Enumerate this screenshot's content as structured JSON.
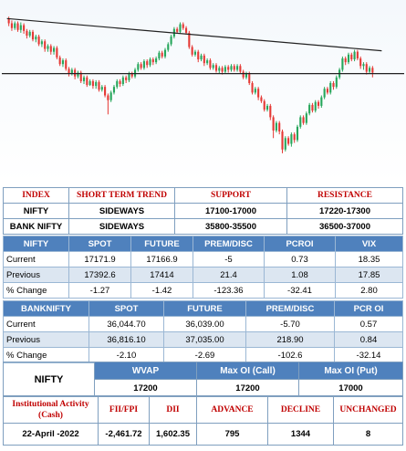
{
  "chart": {
    "candles": [
      [
        8.0,
        3.0,
        0.0,
        10.0
      ],
      [
        3.0,
        -2.0,
        -5.0,
        6.0
      ],
      [
        -2.0,
        3.0,
        -4.0,
        5.0
      ],
      [
        3.0,
        -4.0,
        -6.0,
        5.0
      ],
      [
        -4.0,
        1.0,
        -7.0,
        4.0
      ],
      [
        1.0,
        -5.0,
        -8.0,
        3.0
      ],
      [
        -5.0,
        -10.0,
        -13.0,
        -3.0
      ],
      [
        -10.0,
        -6.0,
        -12.0,
        -4.0
      ],
      [
        -6.0,
        -14.0,
        -16.0,
        -4.0
      ],
      [
        -14.0,
        -11.0,
        -17.0,
        -9.0
      ],
      [
        -11.0,
        -19.0,
        -21.0,
        -9.0
      ],
      [
        -19.0,
        -16.0,
        -22.0,
        -14.0
      ],
      [
        -16.0,
        -24.0,
        -27.0,
        -14.0
      ],
      [
        -24.0,
        -21.0,
        -27.0,
        -19.0
      ],
      [
        -21.0,
        -27.0,
        -30.0,
        -19.0
      ],
      [
        -27.0,
        -23.0,
        -30.0,
        -21.0
      ],
      [
        -23.0,
        -33.0,
        -35.0,
        -21.0
      ],
      [
        -33.0,
        -40.0,
        -42.0,
        -31.0
      ],
      [
        -40.0,
        -36.0,
        -43.0,
        -34.0
      ],
      [
        -36.0,
        -45.0,
        -47.0,
        -34.0
      ],
      [
        -45.0,
        -50.0,
        -53.0,
        -43.0
      ],
      [
        -50.0,
        -46.0,
        -52.0,
        -44.0
      ],
      [
        -46.0,
        -53.0,
        -56.0,
        -44.0
      ],
      [
        -53.0,
        -49.0,
        -55.0,
        -47.0
      ],
      [
        -49.0,
        -58.0,
        -60.0,
        -47.0
      ],
      [
        -58.0,
        -54.0,
        -61.0,
        -52.0
      ],
      [
        -54.0,
        -62.0,
        -64.0,
        -52.0
      ],
      [
        -62.0,
        -58.0,
        -63.0,
        -56.0
      ],
      [
        -58.0,
        -63.0,
        -66.0,
        -56.0
      ],
      [
        -63.0,
        -59.0,
        -66.0,
        -57.0
      ],
      [
        -59.0,
        -67.0,
        -69.0,
        -57.0
      ],
      [
        -67.0,
        -64.0,
        -69.0,
        -62.0
      ],
      [
        -64.0,
        -73.0,
        -75.0,
        -62.0
      ],
      [
        -73.0,
        -78.0,
        -93.0,
        -71.0
      ],
      [
        -78.0,
        -70.0,
        -80.0,
        -68.0
      ],
      [
        -70.0,
        -64.0,
        -72.0,
        -62.0
      ],
      [
        -64.0,
        -58.0,
        -66.0,
        -56.0
      ],
      [
        -58.0,
        -61.0,
        -64.0,
        -56.0
      ],
      [
        -61.0,
        -54.0,
        -63.0,
        -52.0
      ],
      [
        -54.0,
        -57.0,
        -60.0,
        -52.0
      ],
      [
        -57.0,
        -50.0,
        -59.0,
        -48.0
      ],
      [
        -50.0,
        -53.0,
        -55.0,
        -48.0
      ],
      [
        -53.0,
        -46.0,
        -55.0,
        -44.0
      ],
      [
        -46.0,
        -40.0,
        -48.0,
        -38.0
      ],
      [
        -40.0,
        -44.0,
        -46.0,
        -38.0
      ],
      [
        -44.0,
        -37.0,
        -46.0,
        -35.0
      ],
      [
        -37.0,
        -41.0,
        -44.0,
        -35.0
      ],
      [
        -41.0,
        -35.0,
        -43.0,
        -33.0
      ],
      [
        -35.0,
        -38.0,
        -41.0,
        -33.0
      ],
      [
        -38.0,
        -34.0,
        -40.0,
        -32.0
      ],
      [
        -34.0,
        -28.0,
        -36.0,
        -26.0
      ],
      [
        -28.0,
        -32.0,
        -34.0,
        -26.0
      ],
      [
        -32.0,
        -25.0,
        -34.0,
        -23.0
      ],
      [
        -25.0,
        -19.0,
        -27.0,
        -17.0
      ],
      [
        -19.0,
        -11.0,
        -21.0,
        -9.0
      ],
      [
        -11.0,
        -3.0,
        -13.0,
        -1.0
      ],
      [
        -3.0,
        -6.0,
        -8.0,
        -1.0
      ],
      [
        -6.0,
        2.0,
        -8.0,
        4.0
      ],
      [
        2.0,
        -2.0,
        -4.0,
        4.0
      ],
      [
        -2.0,
        -7.0,
        -9.0,
        0.0
      ],
      [
        -7.0,
        -22.0,
        -24.0,
        -5.0
      ],
      [
        -22.0,
        -30.0,
        -32.0,
        -20.0
      ],
      [
        -30.0,
        -27.0,
        -32.0,
        -25.0
      ],
      [
        -27.0,
        -35.0,
        -38.0,
        -25.0
      ],
      [
        -35.0,
        -31.0,
        -37.0,
        -29.0
      ],
      [
        -31.0,
        -39.0,
        -42.0,
        -29.0
      ],
      [
        -39.0,
        -36.0,
        -41.0,
        -34.0
      ],
      [
        -36.0,
        -44.0,
        -46.0,
        -34.0
      ],
      [
        -44.0,
        -41.0,
        -46.0,
        -39.0
      ],
      [
        -41.0,
        -47.0,
        -49.0,
        -39.0
      ],
      [
        -47.0,
        -44.0,
        -50.0,
        -42.0
      ],
      [
        -44.0,
        -48.0,
        -51.0,
        -42.0
      ],
      [
        -48.0,
        -43.0,
        -50.0,
        -41.0
      ],
      [
        -43.0,
        -46.0,
        -49.0,
        -41.0
      ],
      [
        -46.0,
        -42.0,
        -48.0,
        -40.0
      ],
      [
        -42.0,
        -46.0,
        -48.0,
        -40.0
      ],
      [
        -46.0,
        -42.0,
        -48.0,
        -40.0
      ],
      [
        -42.0,
        -48.0,
        -50.0,
        -40.0
      ],
      [
        -48.0,
        -54.0,
        -56.0,
        -46.0
      ],
      [
        -54.0,
        -50.0,
        -56.0,
        -48.0
      ],
      [
        -50.0,
        -60.0,
        -62.0,
        -48.0
      ],
      [
        -60.0,
        -70.0,
        -72.0,
        -58.0
      ],
      [
        -70.0,
        -66.0,
        -72.0,
        -64.0
      ],
      [
        -66.0,
        -75.0,
        -78.0,
        -64.0
      ],
      [
        -75.0,
        -79.0,
        -81.0,
        -73.0
      ],
      [
        -79.0,
        -88.0,
        -90.0,
        -77.0
      ],
      [
        -88.0,
        -84.0,
        -90.0,
        -82.0
      ],
      [
        -84.0,
        -96.0,
        -99.0,
        -82.0
      ],
      [
        -96.0,
        -110.0,
        -118.0,
        -94.0
      ],
      [
        -110.0,
        -102.0,
        -112.0,
        -100.0
      ],
      [
        -102.0,
        -111.0,
        -114.0,
        -100.0
      ],
      [
        -111.0,
        -130.0,
        -134.0,
        -109.0
      ],
      [
        -130.0,
        -118.0,
        -132.0,
        -116.0
      ],
      [
        -118.0,
        -124.0,
        -126.0,
        -116.0
      ],
      [
        -124.0,
        -114.0,
        -127.0,
        -112.0
      ],
      [
        -114.0,
        -120.0,
        -123.0,
        -112.0
      ],
      [
        -120.0,
        -106.0,
        -122.0,
        -104.0
      ],
      [
        -106.0,
        -96.0,
        -108.0,
        -94.0
      ],
      [
        -96.0,
        -102.0,
        -104.0,
        -94.0
      ],
      [
        -102.0,
        -92.0,
        -104.0,
        -90.0
      ],
      [
        -92.0,
        -83.0,
        -94.0,
        -81.0
      ],
      [
        -83.0,
        -89.0,
        -91.0,
        -81.0
      ],
      [
        -89.0,
        -80.0,
        -91.0,
        -78.0
      ],
      [
        -80.0,
        -84.0,
        -87.0,
        -78.0
      ],
      [
        -84.0,
        -75.0,
        -86.0,
        -73.0
      ],
      [
        -75.0,
        -66.0,
        -77.0,
        -64.0
      ],
      [
        -66.0,
        -70.0,
        -72.0,
        -64.0
      ],
      [
        -70.0,
        -60.0,
        -72.0,
        -58.0
      ],
      [
        -60.0,
        -64.0,
        -67.0,
        -58.0
      ],
      [
        -64.0,
        -54.0,
        -66.0,
        -52.0
      ],
      [
        -54.0,
        -46.0,
        -56.0,
        -44.0
      ],
      [
        -46.0,
        -34.0,
        -48.0,
        -32.0
      ],
      [
        -34.0,
        -38.0,
        -41.0,
        -32.0
      ],
      [
        -38.0,
        -30.0,
        -40.0,
        -28.0
      ],
      [
        -30.0,
        -35.0,
        -37.0,
        -28.0
      ],
      [
        -35.0,
        -27.0,
        -37.0,
        -25.0
      ],
      [
        -27.0,
        -34.0,
        -36.0,
        -25.0
      ],
      [
        -34.0,
        -42.0,
        -45.0,
        -32.0
      ],
      [
        -42.0,
        -40.0,
        -46.0,
        -38.0
      ],
      [
        -40.0,
        -48.0,
        -51.0,
        -38.0
      ],
      [
        -48.0,
        -44.0,
        -50.0,
        -42.0
      ],
      [
        -44.0,
        -49.0,
        -54.0,
        -42.0
      ]
    ],
    "support_line_y": -50,
    "trend_line": [
      [
        0,
        8
      ],
      [
        121,
        -26
      ]
    ]
  },
  "summary": {
    "headers": [
      "INDEX",
      "SHORT TERM TREND",
      "SUPPORT",
      "RESISTANCE"
    ],
    "rows": [
      [
        "NIFTY",
        "SIDEWAYS",
        "17100-17000",
        "17220-17300"
      ],
      [
        "BANK NIFTY",
        "SIDEWAYS",
        "35800-35500",
        "36500-37000"
      ]
    ]
  },
  "nifty": {
    "headers": [
      "NIFTY",
      "SPOT",
      "FUTURE",
      "PREM/DISC",
      "PCROI",
      "VIX"
    ],
    "rows": [
      [
        "Current",
        "17171.9",
        "17166.9",
        "-5",
        "0.73",
        "18.35"
      ],
      [
        "Previous",
        "17392.6",
        "17414",
        "21.4",
        "1.08",
        "17.85"
      ],
      [
        "% Change",
        "-1.27",
        "-1.42",
        "-123.36",
        "-32.41",
        "2.80"
      ]
    ]
  },
  "banknifty": {
    "headers": [
      "BANKNIFTY",
      "SPOT",
      "FUTURE",
      "PREM/DISC",
      "PCR OI"
    ],
    "rows": [
      [
        "Current",
        "36,044.70",
        "36,039.00",
        "-5.70",
        "0.57"
      ],
      [
        "Previous",
        "36,816.10",
        "37,035.00",
        "218.90",
        "0.84"
      ],
      [
        "% Change",
        "-2.10",
        "-2.69",
        "-102.6",
        "-32.14"
      ]
    ]
  },
  "oi": {
    "label": "NIFTY",
    "headers": [
      "WVAP",
      "Max OI (Call)",
      "Max OI (Put)"
    ],
    "values": [
      "17200",
      "17200",
      "17000"
    ]
  },
  "activity": {
    "headers": [
      "Institutional Activity (Cash)",
      "FII/FPI",
      "DII",
      "ADVANCE",
      "DECLINE",
      "UNCHANGED"
    ],
    "values": [
      "22-April -2022",
      "-2,461.72",
      "1,602.35",
      "795",
      "1344",
      "8"
    ]
  }
}
